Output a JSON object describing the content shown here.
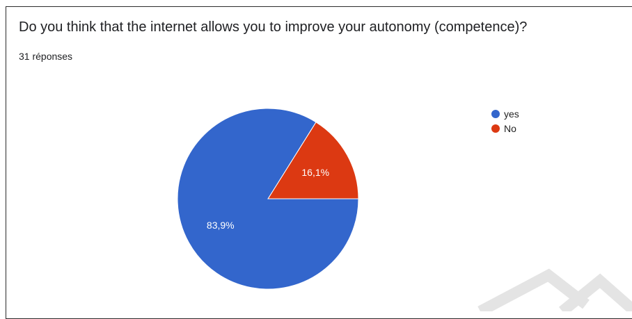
{
  "title": "Do you think that the internet allows you to improve your autonomy (competence)?",
  "subtitle": "31 réponses",
  "chart_data": {
    "type": "pie",
    "categories": [
      "yes",
      "No"
    ],
    "values": [
      83.9,
      16.1
    ],
    "labels": [
      "83,9%",
      "16,1%"
    ],
    "colors": [
      "#3366cc",
      "#dc3912"
    ],
    "legend_position": "right"
  }
}
